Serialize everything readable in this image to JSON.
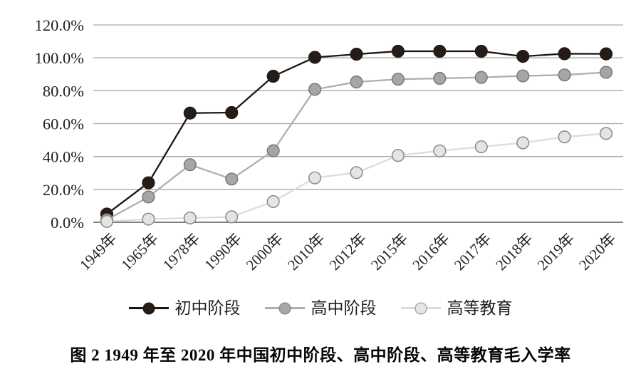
{
  "caption": "图 2  1949 年至 2020 年中国初中阶段、高中阶段、高等教育毛入学率",
  "chart_data": {
    "type": "line",
    "title": "",
    "xlabel": "",
    "ylabel": "",
    "categories": [
      "1949年",
      "1965年",
      "1978年",
      "1990年",
      "2000年",
      "2010年",
      "2012年",
      "2015年",
      "2016年",
      "2017年",
      "2018年",
      "2019年",
      "2020年"
    ],
    "series": [
      {
        "name": "初中阶段",
        "values": [
          5.0,
          24.0,
          66.4,
          66.7,
          88.8,
          100.3,
          102.2,
          104.0,
          104.0,
          104.0,
          100.9,
          102.5,
          102.4
        ],
        "line_color": "#1e1512",
        "marker_fill": "#251b17",
        "marker_stroke": "#251b17"
      },
      {
        "name": "高中阶段",
        "values": [
          1.5,
          15.4,
          35.0,
          26.3,
          43.5,
          80.8,
          85.3,
          87.0,
          87.5,
          88.1,
          89.0,
          89.6,
          91.2
        ],
        "line_color": "#aeaeae",
        "marker_fill": "#a6a6a6",
        "marker_stroke": "#7c7c7c"
      },
      {
        "name": "高等教育",
        "values": [
          0.5,
          1.9,
          2.6,
          3.3,
          12.6,
          27.0,
          30.2,
          40.6,
          43.4,
          45.9,
          48.3,
          51.9,
          54.0
        ],
        "line_color": "#dcdcda",
        "marker_fill": "#e4e4e2",
        "marker_stroke": "#8f8f8f"
      }
    ],
    "ylim": [
      0,
      120
    ],
    "ytick_step": 20,
    "ytick_labels": [
      "0.0%",
      "20.0%",
      "40.0%",
      "60.0%",
      "80.0%",
      "100.0%",
      "120.0%"
    ],
    "grid": true,
    "legend_position": "bottom",
    "grid_color": "#a9a9a9",
    "axis_color": "#6e6e6e",
    "text_color": "#231f1e"
  }
}
